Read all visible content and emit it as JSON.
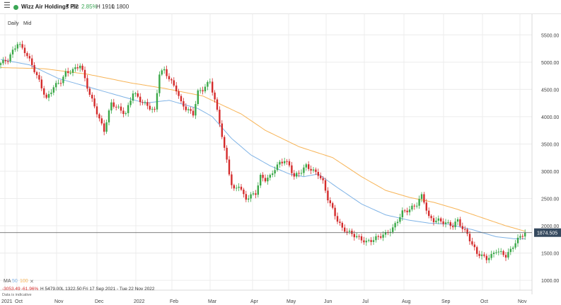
{
  "toolbar": {
    "menu_icon": "hamburger-menu-icon",
    "dot_color": "#3aa655",
    "instrument": "Wizz Air Holdings Plc",
    "price": "52",
    "change": "2.85%",
    "high": "H 1910",
    "low": "L 1800"
  },
  "controls": {
    "interval": "Daily",
    "price_type": "Mid"
  },
  "legend": {
    "ma_label": "MA",
    "ma50_label": "50",
    "ma100_label": "100",
    "close_icon": "close-icon",
    "change_abs": "-3053.49",
    "change_pct": "-61.96%",
    "high": "H 5479.00",
    "low": "L 1322.50",
    "range": "Fri 17 Sep 2021 - Tue 22 Nov 2022",
    "note": "Data is indicative"
  },
  "colors": {
    "up": "#3aa848",
    "down": "#d42b2b",
    "ma50": "#7fb3e6",
    "ma100": "#f7b457",
    "price_tag": "#35495e",
    "grid": "#ececec"
  },
  "chart_data": {
    "type": "candlestick",
    "x_tick_labels": [
      "2021",
      "Oct",
      "Nov",
      "Dec",
      "2022",
      "Feb",
      "Mar",
      "Apr",
      "May",
      "Jun",
      "Jul",
      "Aug",
      "Sep",
      "Oct",
      "Nov"
    ],
    "y_ticks": [
      1000,
      1500,
      2000,
      2500,
      3000,
      3500,
      4000,
      4500,
      5000,
      5500
    ],
    "y_tick_labels": [
      "1000.00",
      "1500.00",
      "2000.00",
      "2500.00",
      "3000.00",
      "3500.00",
      "4000.00",
      "4500.00",
      "5000.00",
      "5500.00"
    ],
    "ylim": [
      820,
      5880
    ],
    "grid": true,
    "current_price": 1874.505,
    "current_price_label": "1874.505",
    "close_anchors": [
      [
        0,
        4980
      ],
      [
        3,
        5050
      ],
      [
        7,
        5350
      ],
      [
        10,
        5200
      ],
      [
        13,
        4950
      ],
      [
        16,
        4650
      ],
      [
        19,
        4320
      ],
      [
        22,
        4550
      ],
      [
        25,
        4650
      ],
      [
        27,
        4800
      ],
      [
        30,
        4850
      ],
      [
        33,
        4950
      ],
      [
        35,
        4700
      ],
      [
        37,
        4400
      ],
      [
        39,
        4200
      ],
      [
        41,
        3950
      ],
      [
        43,
        3750
      ],
      [
        46,
        4250
      ],
      [
        49,
        4150
      ],
      [
        52,
        4050
      ],
      [
        55,
        4450
      ],
      [
        58,
        4300
      ],
      [
        61,
        4200
      ],
      [
        64,
        4100
      ],
      [
        66,
        4800
      ],
      [
        68,
        4850
      ],
      [
        70,
        4700
      ],
      [
        73,
        4500
      ],
      [
        75,
        4250
      ],
      [
        77,
        4150
      ],
      [
        80,
        4050
      ],
      [
        82,
        4450
      ],
      [
        84,
        4500
      ],
      [
        85,
        4550
      ],
      [
        87,
        4650
      ],
      [
        89,
        4300
      ],
      [
        91,
        3900
      ],
      [
        93,
        3400
      ],
      [
        94,
        3200
      ],
      [
        96,
        2750
      ],
      [
        97,
        2650
      ],
      [
        99,
        2750
      ],
      [
        101,
        2550
      ],
      [
        102,
        2500
      ],
      [
        104,
        2550
      ],
      [
        106,
        2600
      ],
      [
        108,
        2900
      ],
      [
        110,
        2850
      ],
      [
        112,
        2900
      ],
      [
        114,
        3050
      ],
      [
        116,
        3150
      ],
      [
        118,
        3200
      ],
      [
        120,
        3100
      ],
      [
        122,
        2900
      ],
      [
        125,
        3000
      ],
      [
        127,
        3100
      ],
      [
        130,
        3000
      ],
      [
        132,
        2950
      ],
      [
        134,
        2800
      ],
      [
        136,
        2500
      ],
      [
        138,
        2300
      ],
      [
        140,
        2100
      ],
      [
        142,
        1950
      ],
      [
        144,
        1900
      ],
      [
        146,
        1850
      ],
      [
        148,
        1800
      ],
      [
        150,
        1750
      ],
      [
        152,
        1700
      ],
      [
        155,
        1750
      ],
      [
        157,
        1800
      ],
      [
        160,
        1850
      ],
      [
        163,
        1950
      ],
      [
        165,
        2100
      ],
      [
        167,
        2250
      ],
      [
        170,
        2300
      ],
      [
        173,
        2400
      ],
      [
        175,
        2550
      ],
      [
        176,
        2450
      ],
      [
        178,
        2150
      ],
      [
        180,
        2100
      ],
      [
        182,
        2100
      ],
      [
        185,
        2050
      ],
      [
        188,
        2000
      ],
      [
        190,
        2100
      ],
      [
        192,
        1950
      ],
      [
        194,
        1850
      ],
      [
        196,
        1650
      ],
      [
        198,
        1500
      ],
      [
        200,
        1450
      ],
      [
        202,
        1400
      ],
      [
        204,
        1450
      ],
      [
        206,
        1550
      ],
      [
        208,
        1500
      ],
      [
        210,
        1450
      ],
      [
        212,
        1550
      ],
      [
        214,
        1700
      ],
      [
        216,
        1800
      ],
      [
        218,
        1874
      ]
    ],
    "ma50_anchors": [
      [
        0,
        5050
      ],
      [
        12,
        4950
      ],
      [
        24,
        4700
      ],
      [
        36,
        4550
      ],
      [
        48,
        4400
      ],
      [
        60,
        4250
      ],
      [
        70,
        4300
      ],
      [
        82,
        4150
      ],
      [
        88,
        4000
      ],
      [
        96,
        3600
      ],
      [
        104,
        3300
      ],
      [
        112,
        3100
      ],
      [
        120,
        2950
      ],
      [
        126,
        2900
      ],
      [
        132,
        2950
      ],
      [
        140,
        2700
      ],
      [
        150,
        2400
      ],
      [
        160,
        2200
      ],
      [
        170,
        2100
      ],
      [
        178,
        2050
      ],
      [
        186,
        2030
      ],
      [
        196,
        1930
      ],
      [
        206,
        1800
      ],
      [
        214,
        1760
      ],
      [
        218,
        1760
      ]
    ],
    "ma100_anchors": [
      [
        0,
        4900
      ],
      [
        18,
        4880
      ],
      [
        36,
        4780
      ],
      [
        54,
        4620
      ],
      [
        68,
        4520
      ],
      [
        84,
        4380
      ],
      [
        100,
        4050
      ],
      [
        110,
        3750
      ],
      [
        124,
        3450
      ],
      [
        138,
        3250
      ],
      [
        150,
        2900
      ],
      [
        160,
        2650
      ],
      [
        170,
        2520
      ],
      [
        180,
        2430
      ],
      [
        190,
        2300
      ],
      [
        200,
        2150
      ],
      [
        210,
        2000
      ],
      [
        218,
        1900
      ]
    ]
  }
}
